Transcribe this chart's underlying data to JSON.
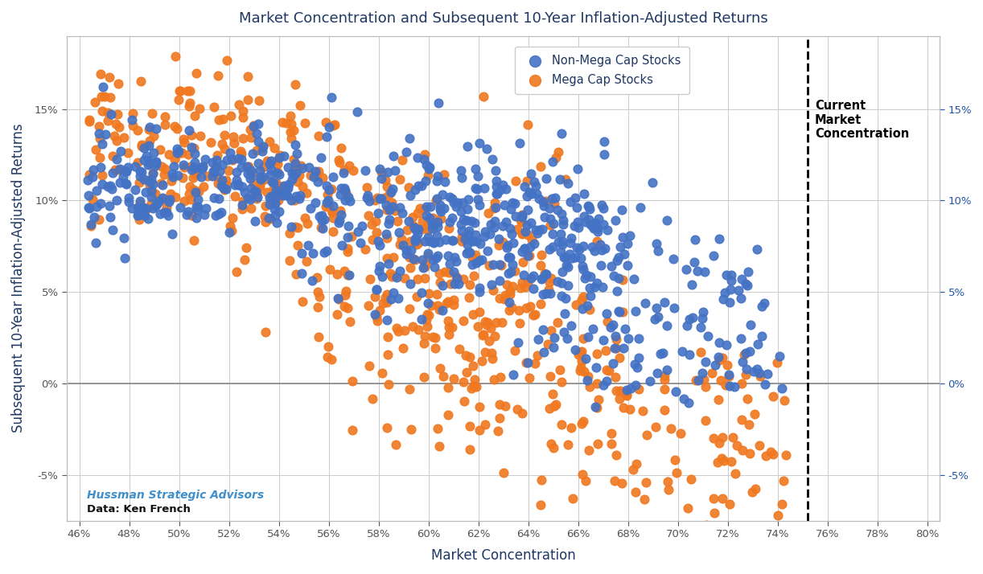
{
  "title": "Market Concentration and Subsequent 10-Year Inflation-Adjusted Returns",
  "xlabel": "Market Concentration",
  "ylabel": "Subsequent 10-Year Inflation-Adjusted Returns",
  "right_label": "Current\nMarket\nConcentration",
  "legend_labels": [
    "Non-Mega Cap Stocks",
    "Mega Cap Stocks"
  ],
  "blue_color": "#4472C4",
  "orange_color": "#F07820",
  "dashed_line_x": 0.752,
  "xlim": [
    0.455,
    0.805
  ],
  "ylim": [
    -0.075,
    0.19
  ],
  "xticks": [
    0.46,
    0.48,
    0.5,
    0.52,
    0.54,
    0.56,
    0.58,
    0.6,
    0.62,
    0.64,
    0.66,
    0.68,
    0.7,
    0.72,
    0.74,
    0.76,
    0.78,
    0.8
  ],
  "yticks": [
    -0.05,
    0.0,
    0.05,
    0.1,
    0.15
  ],
  "watermark_line1": "Hussman Strategic Advisors",
  "watermark_line2": "Data: Ken French",
  "title_color": "#1F3864",
  "axis_label_color": "#1F3864",
  "right_axis_color": "#2255AA",
  "tick_color": "#555555",
  "grid_color": "#CCCCCC",
  "background_color": "#FFFFFF",
  "watermark_blue": "#4090CC",
  "seed": 42
}
